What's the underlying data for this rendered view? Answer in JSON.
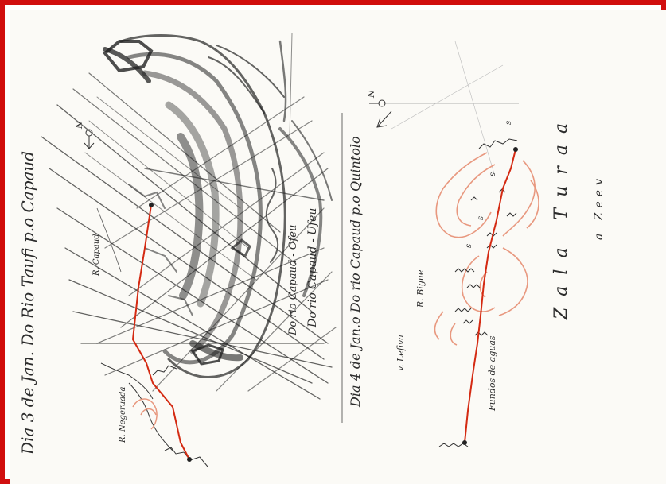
{
  "page": {
    "frame_color": "#d10f0f",
    "paper_color": "#fbfaf6",
    "ink_color": "#2b2b2b",
    "route_color": "#d42a12",
    "contour_color": "#e8987f"
  },
  "left_map": {
    "heading": "Dia 3 de Jan. Do Rio Taufi p.o Capaud",
    "north_label": "N",
    "place_labels": {
      "camp": "R. Capaud",
      "river": "R. Negeruada"
    }
  },
  "middle": {
    "heading": "Dia 4 de Jan.o Do rio Capaud p.o Quintolo",
    "inner_note_1": "Do rio Capaud - Ufeu",
    "inner_note_2": "Do rio Capaud - Ofeu"
  },
  "right_map": {
    "north_label": "N",
    "place_labels": {
      "river": "R. Bigue",
      "village": "v. Lefiva",
      "note": "Fundos de aguas",
      "region": "Zala Turaa",
      "people": "a Zeev"
    }
  }
}
